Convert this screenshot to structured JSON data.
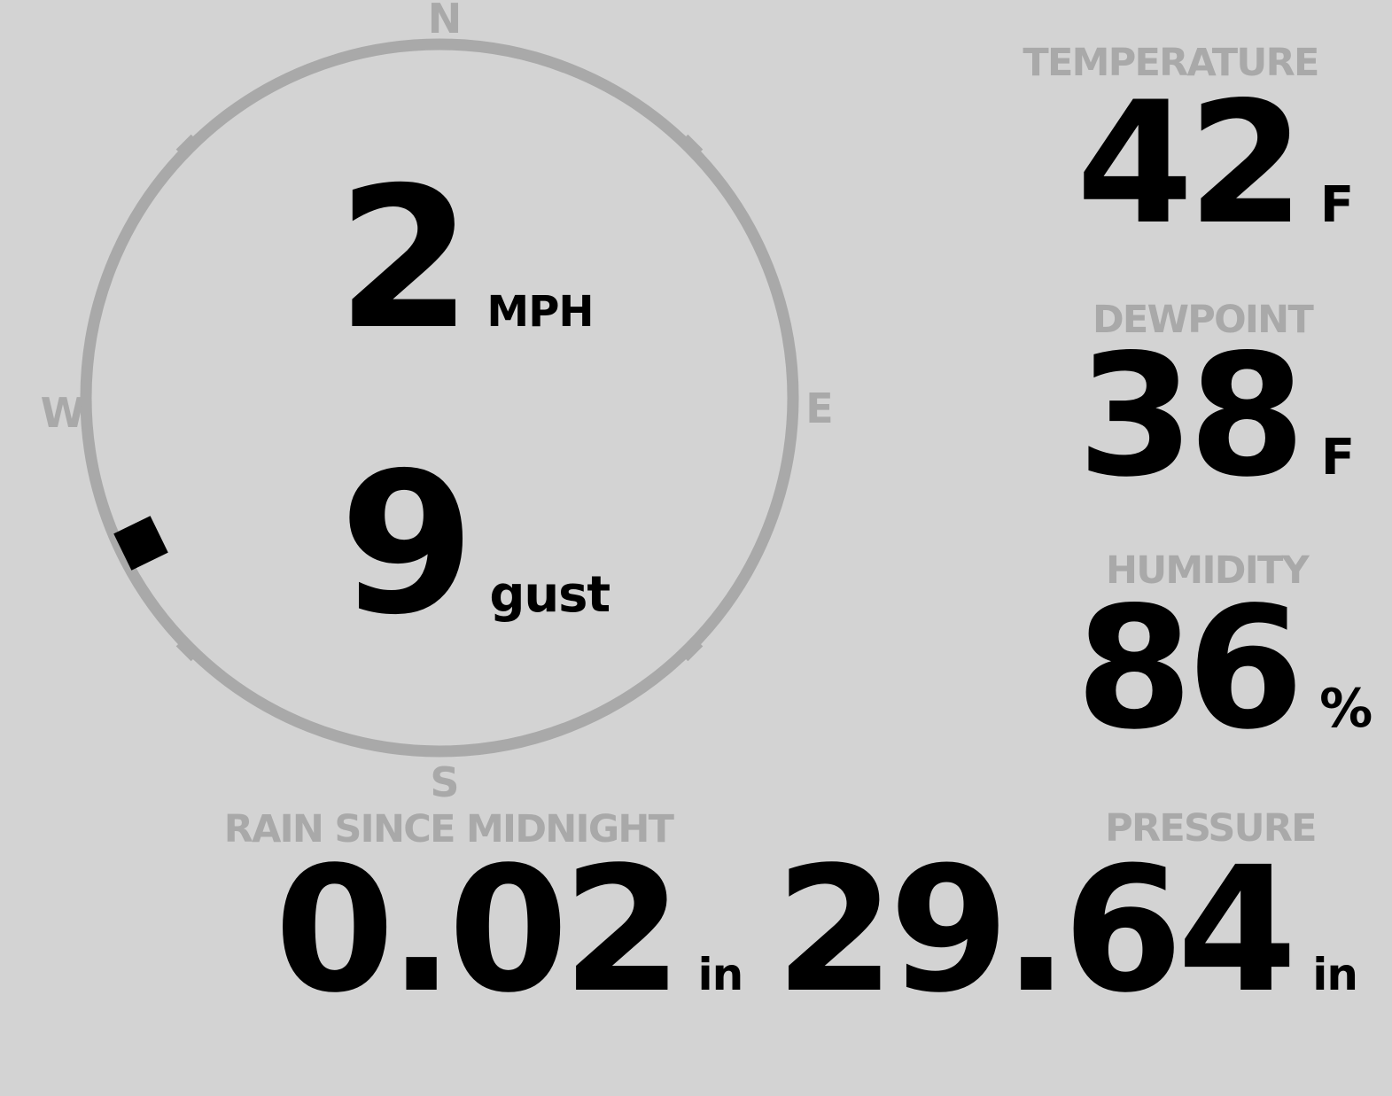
{
  "colors": {
    "background": "#d3d3d3",
    "muted": "#a9a9a9",
    "ink": "#000000"
  },
  "compass": {
    "cardinals": {
      "north": "N",
      "east": "E",
      "south": "S",
      "west": "W"
    },
    "wind_speed": {
      "value": "2",
      "unit": "MPH"
    },
    "wind_gust": {
      "value": "9",
      "unit": "gust"
    },
    "wind_direction_deg": 244
  },
  "metrics": {
    "temperature": {
      "label": "TEMPERATURE",
      "value": "42",
      "unit": "F"
    },
    "dewpoint": {
      "label": "DEWPOINT",
      "value": "38",
      "unit": "F"
    },
    "humidity": {
      "label": "HUMIDITY",
      "value": "86",
      "unit": "%"
    },
    "rain_since_midnight": {
      "label": "RAIN SINCE MIDNIGHT",
      "value": "0.02",
      "unit": "in"
    },
    "pressure": {
      "label": "PRESSURE",
      "value": "29.64",
      "unit": "in"
    }
  }
}
